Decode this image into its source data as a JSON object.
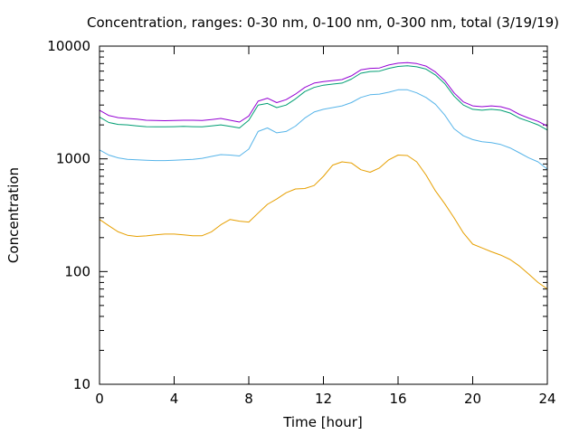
{
  "chart_data": {
    "type": "line",
    "title": "Concentration, ranges: 0-30 nm, 0-100 nm, 0-300 nm, total (3/19/19)",
    "xlabel": "Time [hour]",
    "ylabel": "Concentration",
    "xlim": [
      0,
      24
    ],
    "ylim": [
      10,
      10000
    ],
    "yscale": "log",
    "grid": false,
    "legend": "none",
    "x_ticks": [
      0,
      4,
      8,
      12,
      16,
      20,
      24
    ],
    "x_tick_labels": [
      "0",
      "4",
      "8",
      "12",
      "16",
      "20",
      "24"
    ],
    "y_ticks": [
      10,
      100,
      1000,
      10000
    ],
    "y_tick_labels": [
      "10",
      "100",
      "1000",
      "10000"
    ],
    "x": [
      0,
      0.5,
      1,
      1.5,
      2,
      2.5,
      3,
      3.5,
      4,
      4.5,
      5,
      5.5,
      6,
      6.5,
      7,
      7.5,
      8,
      8.5,
      9,
      9.5,
      10,
      10.5,
      11,
      11.5,
      12,
      12.5,
      13,
      13.5,
      14,
      14.5,
      15,
      15.5,
      16,
      16.5,
      17,
      17.5,
      18,
      18.5,
      19,
      19.5,
      20,
      20.5,
      21,
      21.5,
      22,
      22.5,
      23,
      23.5,
      24
    ],
    "series": [
      {
        "color": "#e69f00",
        "values": [
          290,
          255,
          225,
          210,
          205,
          207,
          212,
          215,
          215,
          212,
          208,
          208,
          225,
          260,
          290,
          280,
          275,
          330,
          395,
          440,
          500,
          540,
          545,
          580,
          700,
          880,
          940,
          920,
          800,
          760,
          830,
          980,
          1080,
          1070,
          940,
          720,
          520,
          400,
          300,
          220,
          175,
          162,
          150,
          140,
          128,
          112,
          95,
          80,
          70
        ]
      },
      {
        "color": "#56b4e9",
        "values": [
          1200,
          1080,
          1020,
          990,
          980,
          970,
          965,
          965,
          970,
          980,
          990,
          1010,
          1050,
          1090,
          1080,
          1060,
          1220,
          1750,
          1880,
          1700,
          1750,
          1950,
          2300,
          2600,
          2750,
          2850,
          2950,
          3150,
          3500,
          3700,
          3750,
          3900,
          4100,
          4100,
          3850,
          3500,
          3050,
          2450,
          1850,
          1600,
          1480,
          1420,
          1390,
          1340,
          1250,
          1130,
          1020,
          940,
          810
        ]
      },
      {
        "color": "#009e73",
        "values": [
          2350,
          2100,
          2020,
          2000,
          1960,
          1930,
          1920,
          1920,
          1930,
          1940,
          1930,
          1920,
          1960,
          2000,
          1940,
          1880,
          2200,
          3000,
          3100,
          2850,
          3000,
          3400,
          3950,
          4300,
          4500,
          4600,
          4700,
          5100,
          5750,
          5950,
          6000,
          6350,
          6600,
          6700,
          6550,
          6250,
          5550,
          4650,
          3600,
          3000,
          2750,
          2700,
          2750,
          2700,
          2550,
          2300,
          2150,
          2000,
          1800
        ]
      },
      {
        "color": "#9400d3",
        "values": [
          2700,
          2420,
          2320,
          2280,
          2250,
          2200,
          2190,
          2180,
          2190,
          2200,
          2200,
          2190,
          2230,
          2280,
          2200,
          2120,
          2400,
          3250,
          3450,
          3150,
          3350,
          3750,
          4300,
          4700,
          4850,
          4950,
          5050,
          5450,
          6150,
          6350,
          6400,
          6800,
          7050,
          7150,
          7000,
          6650,
          5900,
          4950,
          3850,
          3200,
          2950,
          2900,
          2950,
          2900,
          2750,
          2480,
          2300,
          2150,
          1950
        ]
      }
    ]
  }
}
